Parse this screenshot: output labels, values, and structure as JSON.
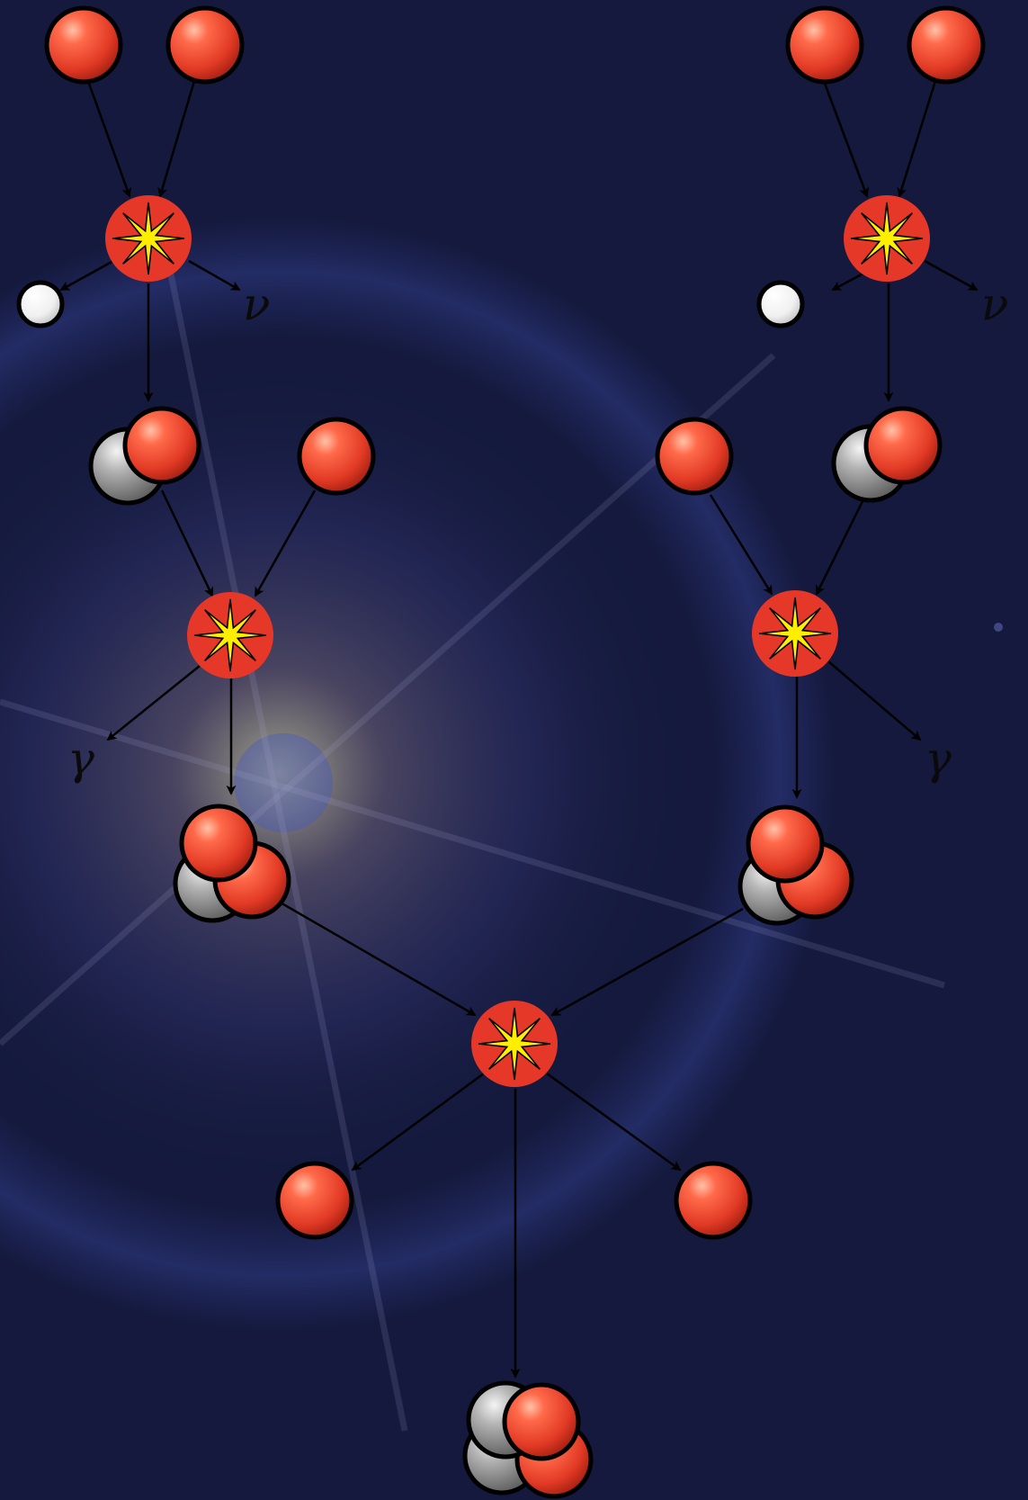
{
  "diagram": {
    "labels": {
      "neutrino_left": "ν",
      "neutrino_right": "ν",
      "gamma_left": "γ",
      "gamma_right": "γ"
    },
    "colors": {
      "background": "#14193d",
      "proton": "#e8402c",
      "neutron": "#9a9a9a",
      "positron": "#ffffff",
      "fusion_event": "#e63828",
      "flash": "#ffee00",
      "arrow": "#000000"
    },
    "icons": {
      "proton": "red-sphere-icon",
      "neutron": "gray-sphere-icon",
      "positron": "white-sphere-icon",
      "fusion_event": "starburst-icon"
    }
  }
}
